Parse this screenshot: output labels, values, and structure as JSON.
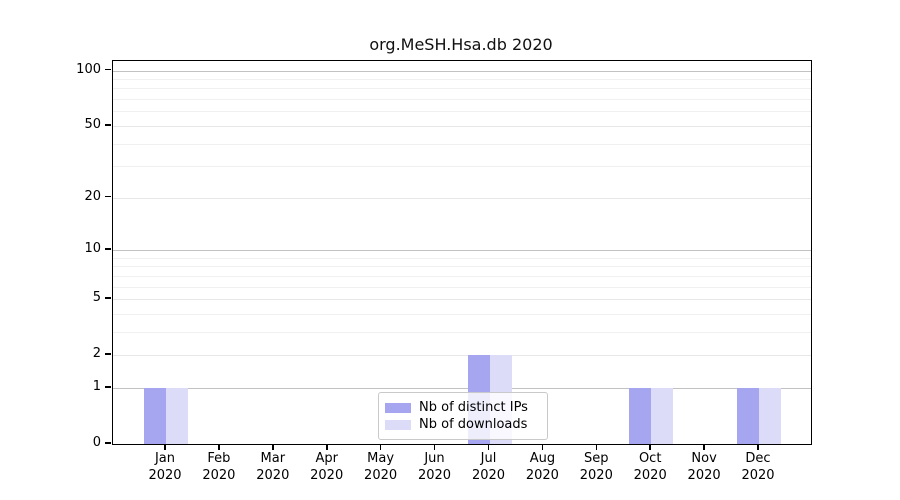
{
  "title": "org.MeSH.Hsa.db 2020",
  "chart_data": {
    "type": "bar",
    "title": "org.MeSH.Hsa.db 2020",
    "categories": [
      "Jan 2020",
      "Feb 2020",
      "Mar 2020",
      "Apr 2020",
      "May 2020",
      "Jun 2020",
      "Jul 2020",
      "Aug 2020",
      "Sep 2020",
      "Oct 2020",
      "Nov 2020",
      "Dec 2020"
    ],
    "series": [
      {
        "name": "Nb of distinct IPs",
        "color": "#a5a5f0",
        "values": [
          1,
          0,
          0,
          0,
          0,
          0,
          2,
          0,
          0,
          1,
          0,
          1
        ]
      },
      {
        "name": "Nb of downloads",
        "color": "#dcdcf8",
        "values": [
          1,
          0,
          0,
          0,
          0,
          0,
          2,
          0,
          0,
          1,
          0,
          1
        ]
      }
    ],
    "yscale": "log10(1+x)",
    "ylim": [
      0,
      113
    ],
    "y_major_ticks": [
      0,
      1,
      2,
      5,
      10,
      20,
      50,
      100
    ],
    "y_power_ticks": [
      1,
      10,
      100
    ],
    "y_minor_gridlines": [
      3,
      4,
      6,
      7,
      8,
      9,
      30,
      40,
      60,
      70,
      80,
      90
    ],
    "grid": true,
    "legend_position": "lower center",
    "xlabel": "",
    "ylabel": ""
  }
}
